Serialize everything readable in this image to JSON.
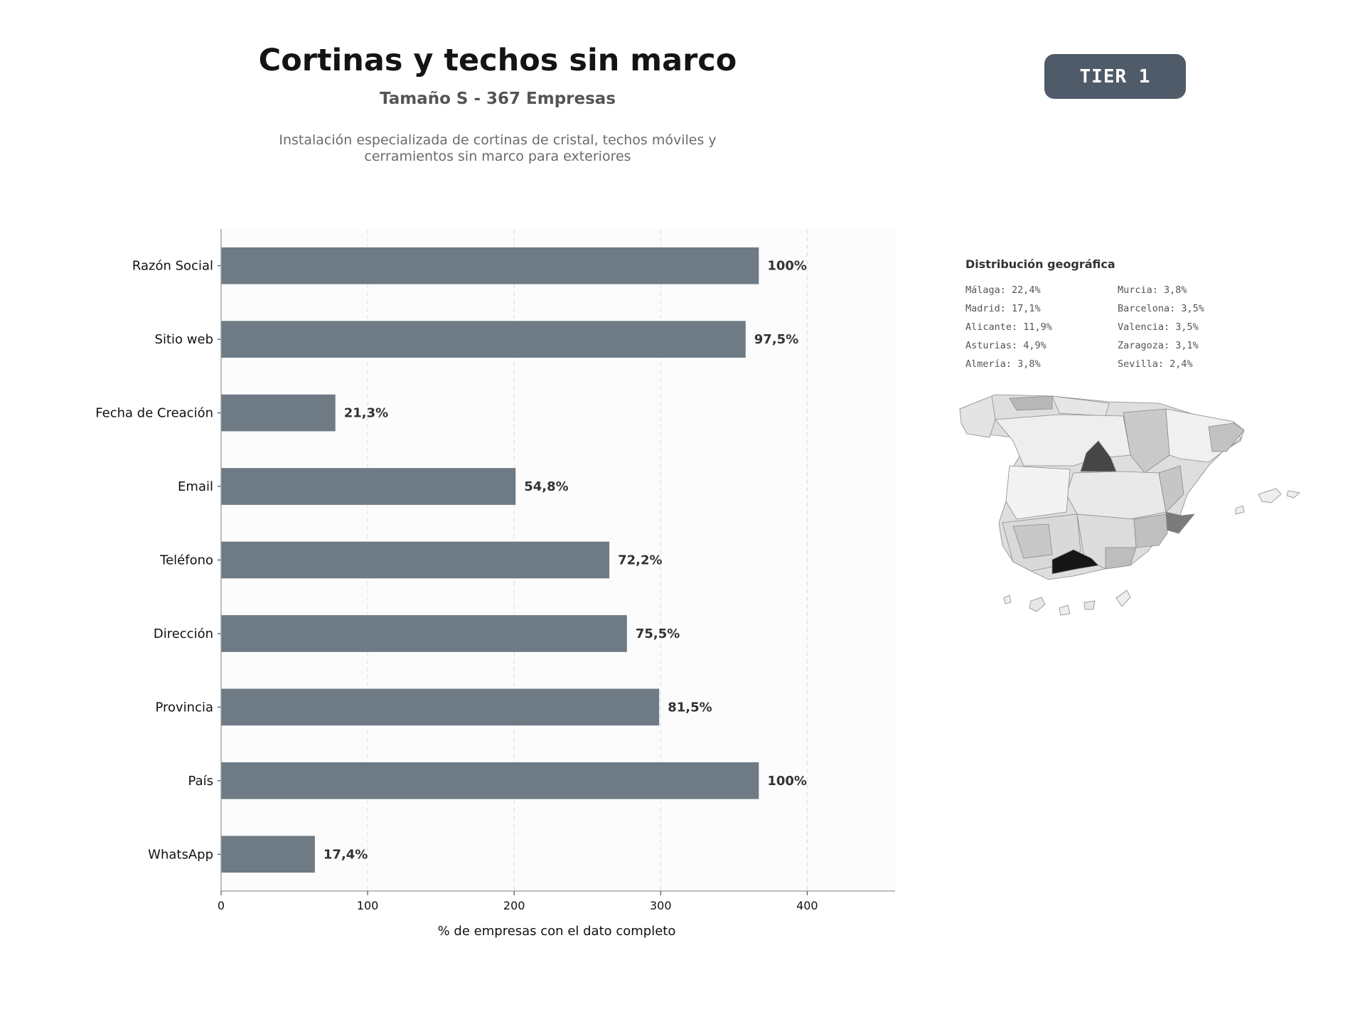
{
  "header": {
    "title": "Cortinas y techos sin marco",
    "subtitle": "Tamaño S - 367 Empresas",
    "description": [
      "Instalación especializada de cortinas de cristal, techos móviles y",
      "cerramientos sin marco para exteriores"
    ]
  },
  "badge": {
    "label": "TIER 1",
    "color": "#4f5b68"
  },
  "chart_data": {
    "type": "bar",
    "orientation": "horizontal",
    "categories": [
      "Razón Social",
      "Sitio web",
      "Fecha de Creación",
      "Email",
      "Teléfono",
      "Dirección",
      "Provincia",
      "País",
      "WhatsApp"
    ],
    "values": [
      367,
      358,
      78,
      201,
      265,
      277,
      299,
      367,
      64
    ],
    "data_labels": [
      "100%",
      "97,5%",
      "21,3%",
      "54,8%",
      "72,2%",
      "75,5%",
      "81,5%",
      "100%",
      "17,4%"
    ],
    "xlabel": "% de empresas con el dato completo",
    "xticks": [
      0,
      100,
      200,
      300,
      400
    ],
    "xlim": [
      0,
      460
    ],
    "grid": "vertical dashed",
    "bar_color": "#6e7a84"
  },
  "geo": {
    "title": "Distribución geográfica",
    "items": [
      "Málaga: 22,4%",
      "Madrid: 17,1%",
      "Alicante: 11,9%",
      "Asturias: 4,9%",
      "Almería: 3,8%",
      "Murcia: 3,8%",
      "Barcelona: 3,5%",
      "Valencia: 3,5%",
      "Zaragoza: 3,1%",
      "Sevilla: 2,4%"
    ],
    "map": "choropleth-spain-provinces"
  }
}
